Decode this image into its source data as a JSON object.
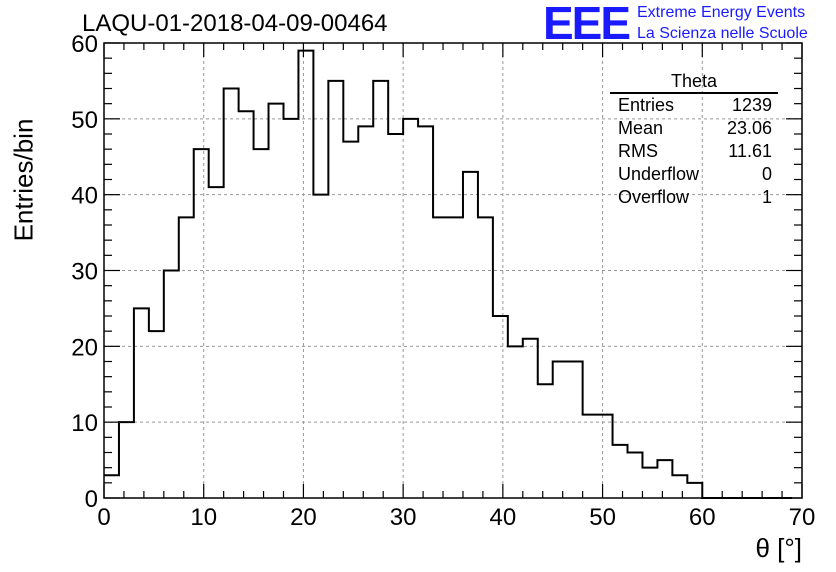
{
  "header": {
    "title": "LAQU-01-2018-04-09-00464",
    "logo_text": "EEE",
    "logo_line1": "Extreme Energy Events",
    "logo_line2": "La Scienza nelle Scuole"
  },
  "stats_box": {
    "title": "Theta",
    "rows": [
      {
        "label": "Entries",
        "value": "1239"
      },
      {
        "label": "Mean",
        "value": "23.06"
      },
      {
        "label": "RMS",
        "value": "11.61"
      },
      {
        "label": "Underflow",
        "value": "0"
      },
      {
        "label": "Overflow",
        "value": "1"
      }
    ]
  },
  "colors": {
    "line": "#000000",
    "grid": "#999999",
    "logo": "#1a1aff"
  },
  "chart_data": {
    "type": "bar",
    "title": "LAQU-01-2018-04-09-00464",
    "xlabel": "θ [°]",
    "ylabel": "Entries/bin",
    "xlim": [
      0,
      70
    ],
    "ylim": [
      0,
      60
    ],
    "grid": true,
    "bin_width": 1.5,
    "bin_edges_start": 0,
    "values": [
      3,
      10,
      25,
      22,
      30,
      37,
      46,
      41,
      54,
      51,
      46,
      52,
      50,
      59,
      40,
      55,
      47,
      49,
      55,
      48,
      50,
      49,
      37,
      37,
      43,
      37,
      24,
      20,
      21,
      15,
      18,
      18,
      11,
      11,
      7,
      6,
      4,
      5,
      3,
      2,
      0,
      0,
      0,
      0,
      0,
      0
    ],
    "xticks": [
      0,
      10,
      20,
      30,
      40,
      50,
      60,
      70
    ],
    "yticks": [
      0,
      10,
      20,
      30,
      40,
      50,
      60
    ]
  }
}
